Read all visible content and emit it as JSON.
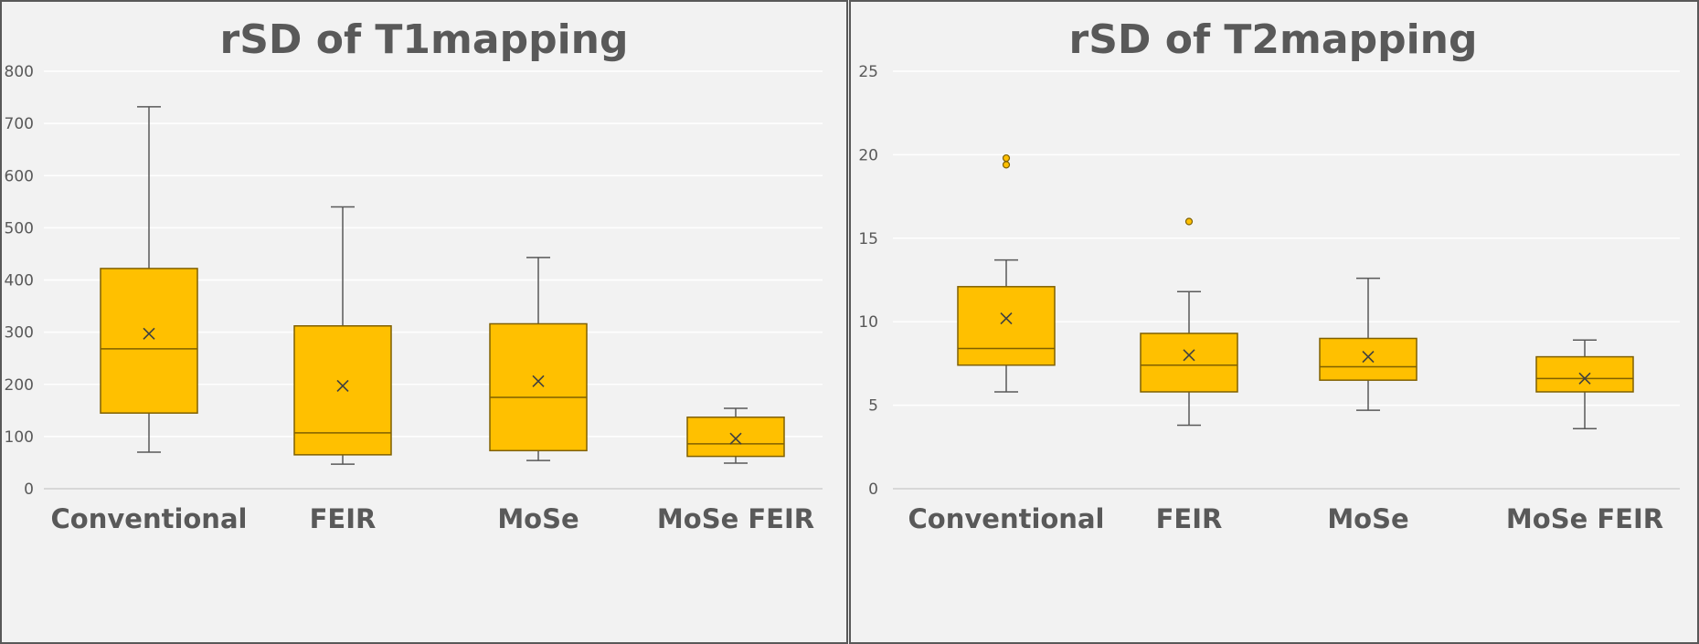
{
  "chart_data": [
    {
      "type": "boxplot",
      "title": "rSD of T1mapping",
      "xlabel": "",
      "ylabel": "",
      "ylim": [
        0,
        800
      ],
      "yticks": [
        0,
        100,
        200,
        300,
        400,
        500,
        600,
        700,
        800
      ],
      "ytick_labels": [
        "0",
        "100",
        "200",
        "300",
        "400",
        "500",
        "600",
        "700",
        "800"
      ],
      "grid": true,
      "categories": [
        "Conventional",
        "FEIR",
        "MoSe",
        "MoSe FEIR"
      ],
      "series": [
        {
          "name": "Conventional",
          "whisker_low": 70,
          "q1": 145,
          "median": 268,
          "q3": 422,
          "whisker_high": 732,
          "mean": 297,
          "outliers": []
        },
        {
          "name": "FEIR",
          "whisker_low": 47,
          "q1": 65,
          "median": 107,
          "q3": 312,
          "whisker_high": 540,
          "mean": 197,
          "outliers": []
        },
        {
          "name": "MoSe",
          "whisker_low": 54,
          "q1": 73,
          "median": 175,
          "q3": 316,
          "whisker_high": 443,
          "mean": 206,
          "outliers": []
        },
        {
          "name": "MoSe FEIR",
          "whisker_low": 49,
          "q1": 62,
          "median": 86,
          "q3": 137,
          "whisker_high": 154,
          "mean": 96,
          "outliers": []
        }
      ]
    },
    {
      "type": "boxplot",
      "title": "rSD of T2mapping",
      "xlabel": "",
      "ylabel": "",
      "ylim": [
        0,
        25
      ],
      "yticks": [
        0,
        5,
        10,
        15,
        20,
        25
      ],
      "ytick_labels": [
        "0",
        "5",
        "10",
        "15",
        "20",
        "25"
      ],
      "grid": true,
      "categories": [
        "Conventional",
        "FEIR",
        "MoSe",
        "MoSe FEIR"
      ],
      "series": [
        {
          "name": "Conventional",
          "whisker_low": 5.8,
          "q1": 7.4,
          "median": 8.4,
          "q3": 12.1,
          "whisker_high": 13.7,
          "mean": 10.2,
          "outliers": [
            19.4,
            19.8
          ]
        },
        {
          "name": "FEIR",
          "whisker_low": 3.8,
          "q1": 5.8,
          "median": 7.4,
          "q3": 9.3,
          "whisker_high": 11.8,
          "mean": 8.0,
          "outliers": [
            16.0
          ]
        },
        {
          "name": "MoSe",
          "whisker_low": 4.7,
          "q1": 6.5,
          "median": 7.3,
          "q3": 9.0,
          "whisker_high": 12.6,
          "mean": 7.9,
          "outliers": []
        },
        {
          "name": "MoSe FEIR",
          "whisker_low": 3.6,
          "q1": 5.8,
          "median": 6.6,
          "q3": 7.9,
          "whisker_high": 8.9,
          "mean": 6.6,
          "outliers": []
        }
      ]
    }
  ],
  "style": {
    "box_fill": "#FFC000",
    "box_stroke": "#7F6000",
    "whisker_color": "#595959",
    "grid_color": "#ffffff",
    "panel_bg": "#F2F2F2",
    "text_color": "#595959",
    "border_color": "#595959"
  }
}
